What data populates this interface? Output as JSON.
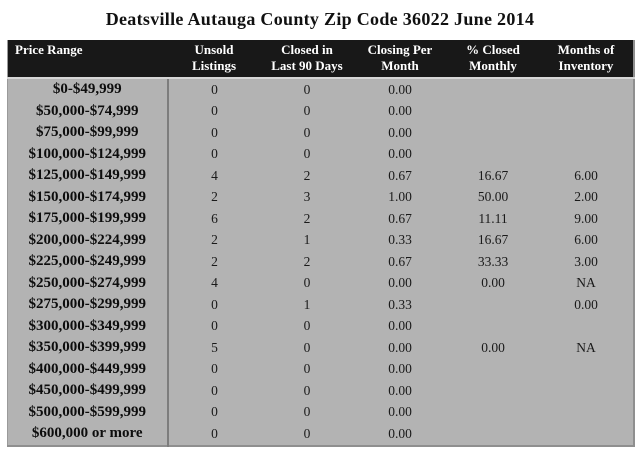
{
  "title": "Deatsville Autauga County Zip Code 36022 June 2014",
  "colors": {
    "page_bg": "#ffffff",
    "header_bg": "#181818",
    "header_text": "#ffffff",
    "body_bg": "#b3b3b3",
    "divider": "#7d7d7d",
    "border": "#8f8f8f",
    "header_sep": "#d6d6d6",
    "text": "#111111"
  },
  "chart_data": {
    "type": "table",
    "title": "Deatsville Autauga County Zip Code 36022 June 2014",
    "legend_position": "none",
    "grid": false,
    "columns": [
      {
        "id": "price-range",
        "label": "Price Range",
        "lines": [
          "Price Range"
        ]
      },
      {
        "id": "unsold-listings",
        "label": "Unsold Listings",
        "lines": [
          "Unsold",
          "Listings"
        ]
      },
      {
        "id": "closed-last-90-days",
        "label": "Closed in Last 90 Days",
        "lines": [
          "Closed in",
          "Last 90 Days"
        ]
      },
      {
        "id": "closing-per-month",
        "label": "Closing Per Month",
        "lines": [
          "Closing Per",
          "Month"
        ]
      },
      {
        "id": "pct-closed-monthly",
        "label": "% Closed Monthly",
        "lines": [
          "% Closed",
          "Monthly"
        ]
      },
      {
        "id": "months-of-inventory",
        "label": "Months of Inventory",
        "lines": [
          "Months of",
          "Inventory"
        ]
      }
    ],
    "rows": [
      [
        "$0-$49,999",
        "0",
        "0",
        "0.00",
        "",
        ""
      ],
      [
        "$50,000-$74,999",
        "0",
        "0",
        "0.00",
        "",
        ""
      ],
      [
        "$75,000-$99,999",
        "0",
        "0",
        "0.00",
        "",
        ""
      ],
      [
        "$100,000-$124,999",
        "0",
        "0",
        "0.00",
        "",
        ""
      ],
      [
        "$125,000-$149,999",
        "4",
        "2",
        "0.67",
        "16.67",
        "6.00"
      ],
      [
        "$150,000-$174,999",
        "2",
        "3",
        "1.00",
        "50.00",
        "2.00"
      ],
      [
        "$175,000-$199,999",
        "6",
        "2",
        "0.67",
        "11.11",
        "9.00"
      ],
      [
        "$200,000-$224,999",
        "2",
        "1",
        "0.33",
        "16.67",
        "6.00"
      ],
      [
        "$225,000-$249,999",
        "2",
        "2",
        "0.67",
        "33.33",
        "3.00"
      ],
      [
        "$250,000-$274,999",
        "4",
        "0",
        "0.00",
        "0.00",
        "NA"
      ],
      [
        "$275,000-$299,999",
        "0",
        "1",
        "0.33",
        "",
        "0.00"
      ],
      [
        "$300,000-$349,999",
        "0",
        "0",
        "0.00",
        "",
        ""
      ],
      [
        "$350,000-$399,999",
        "5",
        "0",
        "0.00",
        "0.00",
        "NA"
      ],
      [
        "$400,000-$449,999",
        "0",
        "0",
        "0.00",
        "",
        ""
      ],
      [
        "$450,000-$499,999",
        "0",
        "0",
        "0.00",
        "",
        ""
      ],
      [
        "$500,000-$599,999",
        "0",
        "0",
        "0.00",
        "",
        ""
      ],
      [
        "$600,000 or more",
        "0",
        "0",
        "0.00",
        "",
        ""
      ]
    ]
  }
}
